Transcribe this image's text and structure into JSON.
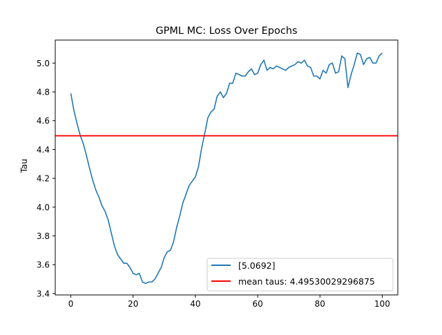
{
  "chart_data": {
    "type": "line",
    "title": "GPML MC: Loss Over Epochs",
    "xlabel": "",
    "ylabel": "Tau",
    "xlim": [
      -5,
      105
    ],
    "ylim": [
      3.39,
      5.16
    ],
    "x_ticks": [
      0,
      20,
      40,
      60,
      80,
      100
    ],
    "y_ticks": [
      3.4,
      3.6,
      3.8,
      4.0,
      4.2,
      4.4,
      4.6,
      4.8,
      5.0
    ],
    "grid": false,
    "legend_position": "lower right",
    "series": [
      {
        "name": "[5.0692]",
        "color": "#1f77b4",
        "x": [
          0,
          1,
          2,
          3,
          4,
          5,
          6,
          7,
          8,
          9,
          10,
          11,
          12,
          13,
          14,
          15,
          16,
          17,
          18,
          19,
          20,
          21,
          22,
          23,
          24,
          25,
          26,
          27,
          28,
          29,
          30,
          31,
          32,
          33,
          34,
          35,
          36,
          37,
          38,
          39,
          40,
          41,
          42,
          43,
          44,
          45,
          46,
          47,
          48,
          49,
          50,
          51,
          52,
          53,
          54,
          55,
          56,
          57,
          58,
          59,
          60,
          61,
          62,
          63,
          64,
          65,
          66,
          67,
          68,
          69,
          70,
          71,
          72,
          73,
          74,
          75,
          76,
          77,
          78,
          79,
          80,
          81,
          82,
          83,
          84,
          85,
          86,
          87,
          88,
          89,
          90,
          91,
          92,
          93,
          94,
          95,
          96,
          97,
          98,
          99,
          100
        ],
        "y": [
          4.79,
          4.67,
          4.58,
          4.5,
          4.44,
          4.36,
          4.27,
          4.19,
          4.12,
          4.07,
          4.01,
          3.97,
          3.91,
          3.82,
          3.73,
          3.67,
          3.64,
          3.61,
          3.61,
          3.58,
          3.54,
          3.53,
          3.54,
          3.48,
          3.47,
          3.48,
          3.48,
          3.5,
          3.54,
          3.58,
          3.65,
          3.69,
          3.7,
          3.76,
          3.86,
          3.94,
          4.03,
          4.09,
          4.15,
          4.18,
          4.21,
          4.28,
          4.41,
          4.51,
          4.62,
          4.66,
          4.68,
          4.77,
          4.8,
          4.76,
          4.79,
          4.86,
          4.86,
          4.93,
          4.92,
          4.91,
          4.91,
          4.94,
          4.96,
          4.92,
          4.93,
          4.99,
          5.02,
          4.95,
          4.97,
          4.96,
          4.98,
          4.97,
          4.96,
          4.95,
          4.97,
          4.98,
          4.99,
          5.01,
          5.0,
          5.02,
          4.98,
          4.97,
          4.91,
          4.91,
          4.89,
          4.95,
          4.93,
          4.99,
          5.0,
          4.93,
          4.94,
          5.05,
          5.03,
          4.83,
          4.92,
          4.99,
          5.07,
          5.06,
          4.99,
          5.03,
          5.04,
          5.0,
          5.0,
          5.05,
          5.07
        ]
      },
      {
        "name": "mean taus: 4.49530029296875",
        "color": "#ff0000",
        "type": "hline",
        "y": 4.49530029296875
      }
    ]
  }
}
